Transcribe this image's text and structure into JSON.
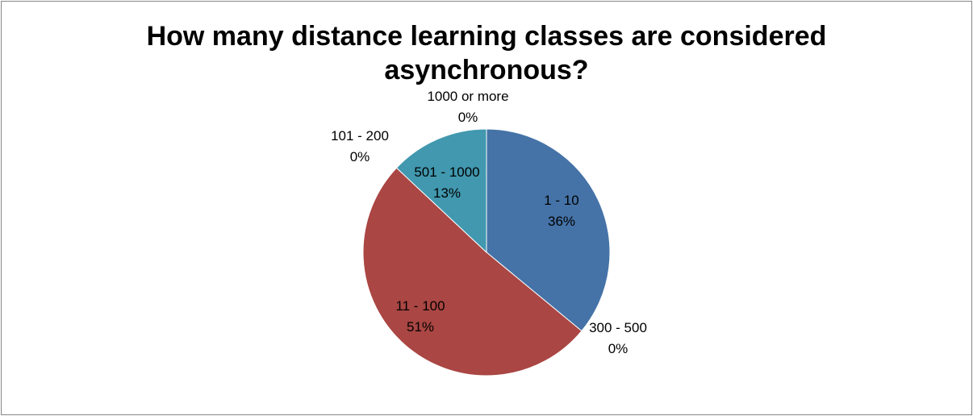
{
  "chart_data": {
    "type": "pie",
    "title_lines": [
      "How many distance learning classes are considered",
      "asynchronous?"
    ],
    "start_angle_deg": 0,
    "direction": "clockwise",
    "slices": [
      {
        "label": "1 - 10",
        "pct_label": "36%",
        "value": 36,
        "color": "#4573A7"
      },
      {
        "label": "300 - 500",
        "pct_label": "0%",
        "value": 0,
        "color": "#89A54E"
      },
      {
        "label": "11 - 100",
        "pct_label": "51%",
        "value": 51,
        "color": "#AA4643"
      },
      {
        "label": "101 - 200",
        "pct_label": "0%",
        "value": 0,
        "color": "#71588F"
      },
      {
        "label": "501 - 1000",
        "pct_label": "13%",
        "value": 13,
        "color": "#4198AF"
      },
      {
        "label": "1000 or more",
        "pct_label": "0%",
        "value": 0,
        "color": "#DB843D"
      }
    ]
  }
}
